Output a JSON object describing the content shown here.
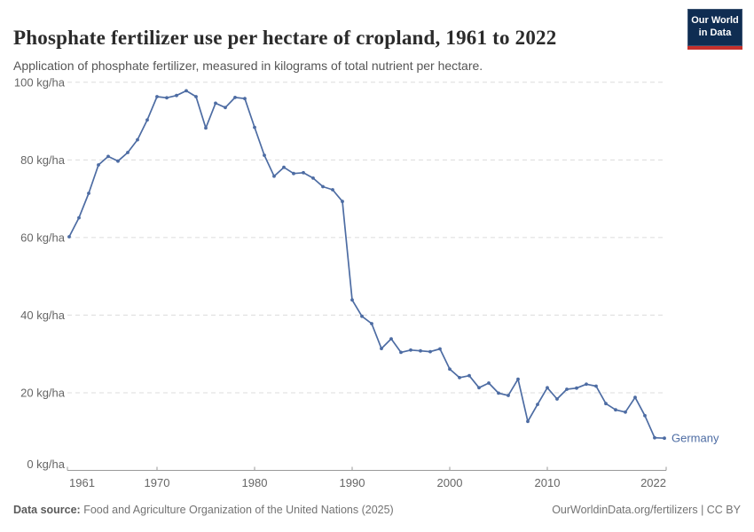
{
  "header": {
    "title": "Phosphate fertilizer use per hectare of cropland, 1961 to 2022",
    "subtitle": "Application of phosphate fertilizer, measured in kilograms of total nutrient per hectare.",
    "logo": {
      "line1": "Our World",
      "line2": "in Data",
      "bg_color": "#0f2d52",
      "bar_color": "#c5302c"
    }
  },
  "footer": {
    "source_label": "Data source:",
    "source_text": " Food and Agriculture Organization of the United Nations (2025)",
    "link_text": "OurWorldinData.org/fertilizers | CC BY"
  },
  "chart_data": {
    "type": "line",
    "title": "Phosphate fertilizer use per hectare of cropland, 1961 to 2022",
    "xlabel": "",
    "ylabel": "kg/ha",
    "xlim": [
      1961,
      2022
    ],
    "ylim": [
      0,
      100
    ],
    "grid": "horizontal-dashed",
    "legend_position": "end-of-line-label",
    "xticks": [
      1961,
      1970,
      1980,
      1990,
      2000,
      2010,
      2022
    ],
    "yticks": [
      {
        "value": 0,
        "label": "0 kg/ha"
      },
      {
        "value": 20,
        "label": "20 kg/ha"
      },
      {
        "value": 40,
        "label": "40 kg/ha"
      },
      {
        "value": 60,
        "label": "60 kg/ha"
      },
      {
        "value": 80,
        "label": "80 kg/ha"
      },
      {
        "value": 100,
        "label": "100 kg/ha"
      }
    ],
    "x": [
      1961,
      1962,
      1963,
      1964,
      1965,
      1966,
      1967,
      1968,
      1969,
      1970,
      1971,
      1972,
      1973,
      1974,
      1975,
      1976,
      1977,
      1978,
      1979,
      1980,
      1981,
      1982,
      1983,
      1984,
      1985,
      1986,
      1987,
      1988,
      1989,
      1990,
      1991,
      1992,
      1993,
      1994,
      1995,
      1996,
      1997,
      1998,
      1999,
      2000,
      2001,
      2002,
      2003,
      2004,
      2005,
      2006,
      2007,
      2008,
      2009,
      2010,
      2011,
      2012,
      2013,
      2014,
      2015,
      2016,
      2017,
      2018,
      2019,
      2020,
      2021,
      2022
    ],
    "series": [
      {
        "name": "Germany",
        "color": "#4d6ca3",
        "values": [
          60.2,
          65.1,
          71.4,
          78.7,
          80.9,
          79.7,
          81.9,
          85.2,
          90.3,
          96.3,
          96.0,
          96.6,
          97.8,
          96.3,
          88.2,
          94.6,
          93.5,
          96.1,
          95.8,
          88.4,
          81.2,
          75.8,
          78.1,
          76.5,
          76.7,
          75.3,
          73.1,
          72.3,
          69.3,
          43.9,
          39.7,
          37.8,
          31.4,
          33.9,
          30.4,
          31.0,
          30.8,
          30.6,
          31.3,
          26.1,
          23.9,
          24.4,
          21.3,
          22.5,
          19.9,
          19.3,
          23.5,
          12.6,
          17.0,
          21.3,
          18.4,
          20.9,
          21.2,
          22.2,
          21.7,
          17.2,
          15.6,
          15.0,
          18.8,
          14.1,
          8.4,
          8.3
        ]
      }
    ]
  }
}
